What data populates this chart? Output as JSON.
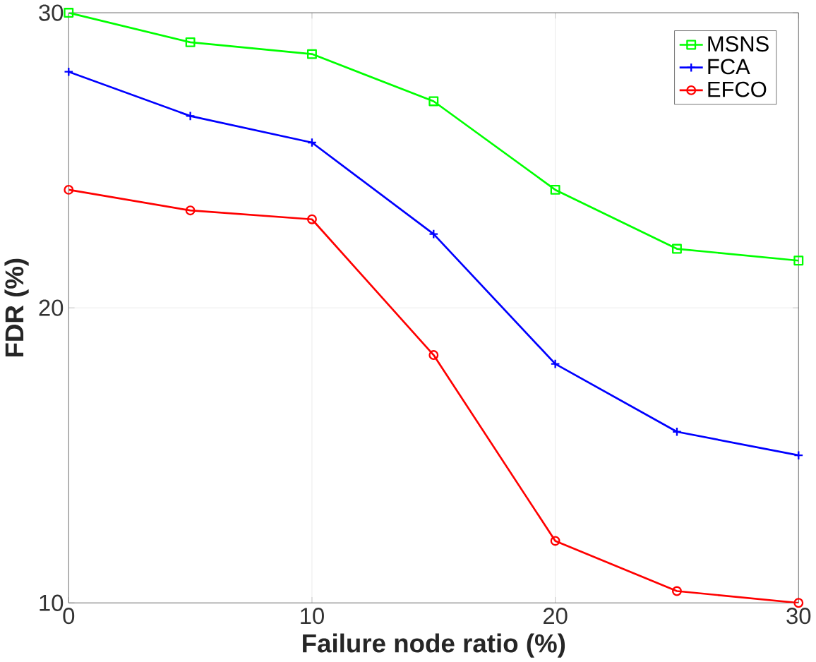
{
  "chart_data": {
    "type": "line",
    "xlabel": "Failure node ratio (%)",
    "ylabel": "FDR (%)",
    "x": [
      0,
      5,
      10,
      15,
      20,
      25,
      30
    ],
    "xlim": [
      0,
      30
    ],
    "xticks": [
      0,
      10,
      20,
      30
    ],
    "ylim": [
      10,
      30
    ],
    "yticks": [
      10,
      20,
      30
    ],
    "grid": true,
    "legend": "top right",
    "series": [
      {
        "name": "MSNS",
        "color": "#00ff00",
        "marker": "square",
        "values": [
          30,
          29.0,
          28.6,
          27.0,
          24.0,
          22.0,
          21.6
        ]
      },
      {
        "name": "FCA",
        "color": "#0000ff",
        "marker": "cross",
        "values": [
          28.0,
          26.5,
          25.6,
          22.5,
          18.1,
          15.8,
          15.0
        ]
      },
      {
        "name": "EFCO",
        "color": "#ff0000",
        "marker": "circle",
        "values": [
          24.0,
          23.3,
          23.0,
          18.4,
          12.1,
          10.4,
          10.0
        ]
      }
    ]
  }
}
